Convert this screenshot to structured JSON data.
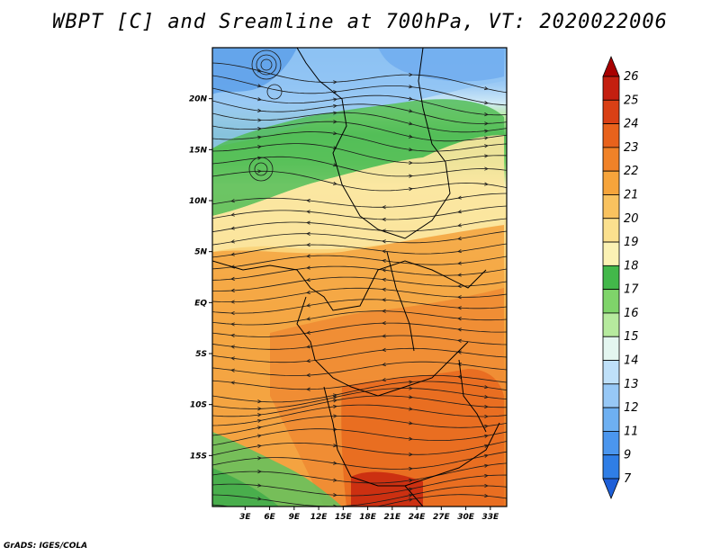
{
  "title": "WBPT [C] and Sreamline at 700hPa, VT: 2020022006",
  "credit": "GrADS: IGES/COLA",
  "map": {
    "lat_range": [
      -20,
      25
    ],
    "lon_range": [
      -1,
      35
    ],
    "lat_ticks": [
      {
        "value": 20,
        "label": "20N"
      },
      {
        "value": 15,
        "label": "15N"
      },
      {
        "value": 10,
        "label": "10N"
      },
      {
        "value": 5,
        "label": "5N"
      },
      {
        "value": 0,
        "label": "EQ"
      },
      {
        "value": -5,
        "label": "5S"
      },
      {
        "value": -10,
        "label": "10S"
      },
      {
        "value": -15,
        "label": "15S"
      }
    ],
    "lon_ticks": [
      {
        "value": 3,
        "label": "3E"
      },
      {
        "value": 6,
        "label": "6E"
      },
      {
        "value": 9,
        "label": "9E"
      },
      {
        "value": 12,
        "label": "12E"
      },
      {
        "value": 15,
        "label": "15E"
      },
      {
        "value": 18,
        "label": "18E"
      },
      {
        "value": 21,
        "label": "21E"
      },
      {
        "value": 24,
        "label": "24E"
      },
      {
        "value": 27,
        "label": "27E"
      },
      {
        "value": 30,
        "label": "30E"
      },
      {
        "value": 33,
        "label": "33E"
      }
    ]
  },
  "colorbar": {
    "levels": [
      "7",
      "9",
      "11",
      "12",
      "13",
      "14",
      "15",
      "16",
      "17",
      "18",
      "19",
      "20",
      "21",
      "22",
      "23",
      "24",
      "25",
      "26"
    ],
    "colors": [
      "#1e5fd8",
      "#2f7ee6",
      "#4b96ee",
      "#6eb0f2",
      "#97c8f6",
      "#bfe0f9",
      "#e4f6f0",
      "#b6ea9e",
      "#7fd46a",
      "#43b84a",
      "#fbf2b4",
      "#fbe08e",
      "#f9c25f",
      "#f6a43b",
      "#f08228",
      "#e8621c",
      "#d94015",
      "#c41f10",
      "#a80000"
    ]
  }
}
